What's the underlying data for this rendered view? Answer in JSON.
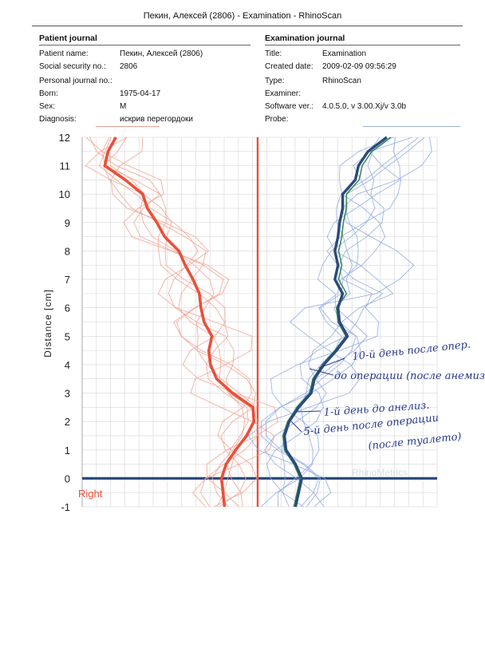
{
  "page": {
    "title": "Пекин, Алексей (2806) - Examination - RhinoScan"
  },
  "patient": {
    "heading": "Patient journal",
    "fields": [
      {
        "label": "Patient name:",
        "value": "Пекин, Алексей (2806)"
      },
      {
        "label": "Social security no.:",
        "value": "2806"
      },
      {
        "label": "Personal journal no.:",
        "value": ""
      },
      {
        "label": "Born:",
        "value": "1975-04-17"
      },
      {
        "label": "Sex:",
        "value": "M"
      },
      {
        "label": "Diagnosis:",
        "value": "искрив перегордоки"
      }
    ]
  },
  "exam": {
    "heading": "Examination journal",
    "fields": [
      {
        "label": "Title:",
        "value": "Examination"
      },
      {
        "label": "Created date:",
        "value": "2009-02-09 09:56:29"
      },
      {
        "label": "Type:",
        "value": "RhinoScan"
      },
      {
        "label": "Examiner:",
        "value": ""
      },
      {
        "label": "Software ver.:",
        "value": "4.0.5.0, v 3.00.Xj/v 3.0b"
      },
      {
        "label": "Probe:",
        "value": ""
      }
    ]
  },
  "colors": {
    "right": "#e8503a",
    "right_light": "#f2a08f",
    "left": "#2b4a7c",
    "left_light": "#8ea8e0",
    "left_green": "#3a8a5a",
    "hand": "#2a3a8c"
  },
  "chart_data": {
    "type": "line",
    "ylabel": "Distance [cm]",
    "ylim": [
      -1,
      12
    ],
    "yticks": [
      "-1",
      "0",
      "1",
      "2",
      "3",
      "4",
      "5",
      "6",
      "7",
      "8",
      "9",
      "10",
      "11",
      "12"
    ],
    "grid": true,
    "side_label": "Right",
    "watermark": "RhinoMetrics",
    "series": [
      {
        "side": "right",
        "y": [
          -1,
          -0.5,
          0,
          0.5,
          1,
          1.5,
          2,
          2.5,
          3,
          3.5,
          4,
          4.5,
          5,
          5.5,
          6,
          6.5,
          7,
          7.5,
          8,
          8.5,
          9,
          9.5,
          10,
          10.5,
          11,
          11.5,
          12
        ],
        "x": [
          -1.05,
          -1.1,
          -1.15,
          -1.0,
          -0.7,
          -0.35,
          -0.12,
          -0.15,
          -0.8,
          -1.3,
          -1.5,
          -1.55,
          -1.45,
          -1.7,
          -1.8,
          -1.85,
          -2.05,
          -2.3,
          -2.5,
          -2.95,
          -3.2,
          -3.5,
          -3.65,
          -4.2,
          -4.85,
          -4.75,
          -4.5
        ]
      },
      {
        "side": "left",
        "y": [
          -1,
          -0.5,
          0,
          0.5,
          1,
          1.5,
          2,
          2.5,
          3,
          3.5,
          4,
          4.5,
          5,
          5.5,
          6,
          6.5,
          7,
          7.5,
          8,
          8.5,
          9,
          9.5,
          10,
          10.5,
          11,
          11.5,
          12
        ],
        "x": [
          1.2,
          1.3,
          1.4,
          1.2,
          0.9,
          0.85,
          1.0,
          1.3,
          1.7,
          1.8,
          2.1,
          2.5,
          2.85,
          2.6,
          2.55,
          2.7,
          2.45,
          2.55,
          2.45,
          2.55,
          2.6,
          2.7,
          2.7,
          3.1,
          3.2,
          3.5,
          4.1
        ]
      }
    ],
    "annotations": [
      "10-й день после опер.",
      "до операции (после анемиз.",
      "1-й день до анелиз.",
      "5-й день после операции",
      "(после туалето)"
    ]
  }
}
